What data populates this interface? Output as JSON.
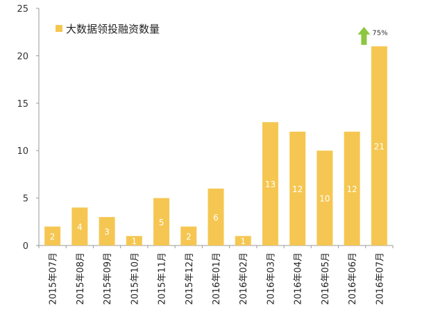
{
  "chart_data": {
    "type": "bar",
    "categories": [
      "2015年07月",
      "2015年08月",
      "2015年09月",
      "2015年10月",
      "2015年11月",
      "2015年12月",
      "2016年01月",
      "2016年02月",
      "2016年03月",
      "2016年04月",
      "2016年05月",
      "2016年06月",
      "2016年07月"
    ],
    "series": [
      {
        "name": "大数据领投融资数量",
        "values": [
          2,
          4,
          3,
          1,
          5,
          2,
          6,
          1,
          13,
          12,
          10,
          12,
          21
        ]
      }
    ],
    "ylim": [
      0,
      25
    ],
    "yticks": [
      0,
      5,
      10,
      15,
      20,
      25
    ],
    "legend_position": "top-left",
    "grid": false,
    "annotation": {
      "text": "75%",
      "icon": "up-arrow-icon",
      "color": "#8dc63f"
    },
    "bar_color": "#f5c752"
  }
}
